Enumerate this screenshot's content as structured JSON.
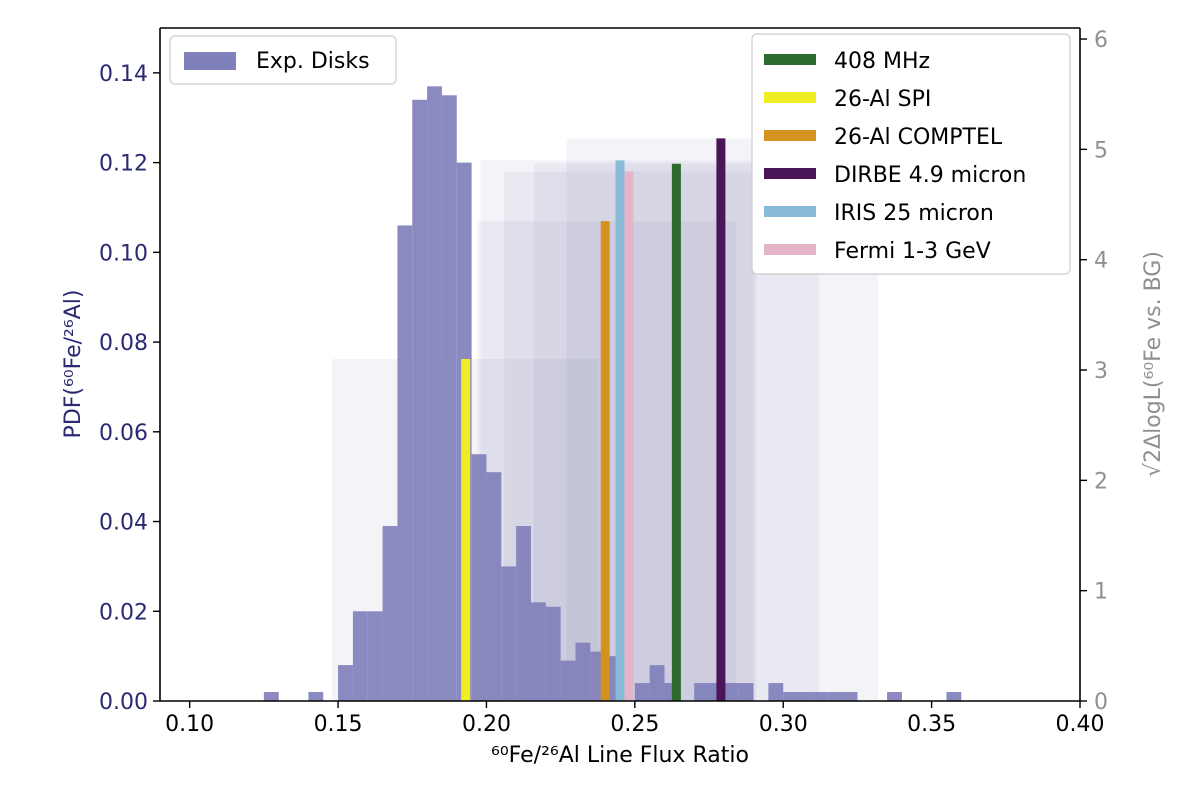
{
  "chart_data": {
    "type": "bar",
    "xlabel": "⁶⁰Fe/²⁶Al Line Flux Ratio",
    "ylabel": "PDF(⁶⁰Fe/²⁶Al)",
    "y2label": "√2ΔlogL(⁶⁰Fe vs. BG)",
    "xlim": [
      0.09,
      0.4
    ],
    "ylim": [
      0,
      0.15
    ],
    "y2lim": [
      0,
      6.1
    ],
    "x_ticks": [
      {
        "v": 0.1,
        "label": "0.10"
      },
      {
        "v": 0.15,
        "label": "0.15"
      },
      {
        "v": 0.2,
        "label": "0.20"
      },
      {
        "v": 0.25,
        "label": "0.25"
      },
      {
        "v": 0.3,
        "label": "0.30"
      },
      {
        "v": 0.35,
        "label": "0.35"
      },
      {
        "v": 0.4,
        "label": "0.40"
      }
    ],
    "y_ticks": [
      {
        "v": 0.0,
        "label": "0.00"
      },
      {
        "v": 0.02,
        "label": "0.02"
      },
      {
        "v": 0.04,
        "label": "0.04"
      },
      {
        "v": 0.06,
        "label": "0.06"
      },
      {
        "v": 0.08,
        "label": "0.08"
      },
      {
        "v": 0.1,
        "label": "0.10"
      },
      {
        "v": 0.12,
        "label": "0.12"
      },
      {
        "v": 0.14,
        "label": "0.14"
      }
    ],
    "y2_ticks": [
      {
        "v": 0,
        "label": "0"
      },
      {
        "v": 1,
        "label": "1"
      },
      {
        "v": 2,
        "label": "2"
      },
      {
        "v": 3,
        "label": "3"
      },
      {
        "v": 4,
        "label": "4"
      },
      {
        "v": 5,
        "label": "5"
      },
      {
        "v": 6,
        "label": "6"
      }
    ],
    "histogram": {
      "name": "Exp. Disks",
      "color": "#8080bb",
      "bin_width": 0.005,
      "bins": [
        [
          0.125,
          0.002
        ],
        [
          0.14,
          0.002
        ],
        [
          0.15,
          0.008
        ],
        [
          0.155,
          0.02
        ],
        [
          0.16,
          0.02
        ],
        [
          0.165,
          0.039
        ],
        [
          0.17,
          0.106
        ],
        [
          0.175,
          0.134
        ],
        [
          0.18,
          0.137
        ],
        [
          0.185,
          0.135
        ],
        [
          0.19,
          0.12
        ],
        [
          0.195,
          0.055
        ],
        [
          0.2,
          0.051
        ],
        [
          0.205,
          0.03
        ],
        [
          0.21,
          0.039
        ],
        [
          0.215,
          0.022
        ],
        [
          0.22,
          0.021
        ],
        [
          0.225,
          0.009
        ],
        [
          0.23,
          0.013
        ],
        [
          0.235,
          0.011
        ],
        [
          0.24,
          0.01
        ],
        [
          0.25,
          0.004
        ],
        [
          0.255,
          0.008
        ],
        [
          0.26,
          0.004
        ],
        [
          0.27,
          0.004
        ],
        [
          0.275,
          0.004
        ],
        [
          0.28,
          0.004
        ],
        [
          0.285,
          0.004
        ],
        [
          0.295,
          0.004
        ],
        [
          0.3,
          0.002
        ],
        [
          0.305,
          0.002
        ],
        [
          0.31,
          0.002
        ],
        [
          0.315,
          0.002
        ],
        [
          0.32,
          0.002
        ],
        [
          0.335,
          0.002
        ],
        [
          0.355,
          0.002
        ]
      ]
    },
    "series": [
      {
        "name": "408 MHz",
        "color": "#2d6a2d",
        "ratio": 0.264,
        "significance": 4.87,
        "band": [
          0.216,
          0.312
        ]
      },
      {
        "name": "26-Al SPI",
        "color": "#eeee22",
        "ratio": 0.193,
        "significance": 3.1,
        "band": [
          0.148,
          0.238
        ]
      },
      {
        "name": "26-Al COMPTEL",
        "color": "#d4921e",
        "ratio": 0.24,
        "significance": 4.35,
        "band": [
          0.197,
          0.284
        ]
      },
      {
        "name": "DIRBE 4.9 micron",
        "color": "#4a1658",
        "ratio": 0.279,
        "significance": 5.1,
        "band": [
          0.227,
          0.332
        ]
      },
      {
        "name": "IRIS 25 micron",
        "color": "#88bbd8",
        "ratio": 0.245,
        "significance": 4.9,
        "band": [
          0.198,
          0.29
        ]
      },
      {
        "name": "Fermi 1-3 GeV",
        "color": "#e4b4c8",
        "ratio": 0.248,
        "significance": 4.8,
        "band": [
          0.206,
          0.291
        ]
      }
    ],
    "band_color": "#6a6aa0",
    "legend_left": "top-left",
    "legend_right": "top-right"
  },
  "colors": {
    "left_axis_text": "#2a2a72",
    "right_axis_text": "#909090"
  }
}
